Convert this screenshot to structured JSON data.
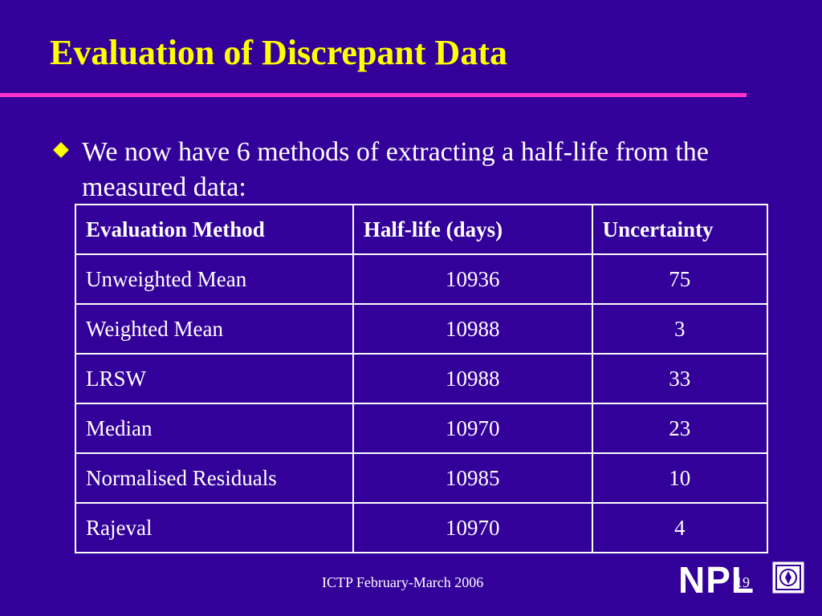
{
  "slide": {
    "title": "Evaluation of Discrepant Data",
    "bullet": "We now have 6 methods of extracting a half-life from the measured data:"
  },
  "table": {
    "headers": [
      "Evaluation Method",
      "Half-life (days)",
      "Uncertainty"
    ],
    "rows": [
      [
        "Unweighted Mean",
        "10936",
        "75"
      ],
      [
        "Weighted Mean",
        "10988",
        "3"
      ],
      [
        "LRSW",
        "10988",
        "33"
      ],
      [
        "Median",
        "10970",
        "23"
      ],
      [
        "Normalised Residuals",
        "10985",
        "10"
      ],
      [
        "Rajeval",
        "10970",
        "4"
      ]
    ]
  },
  "footer": {
    "text": "ICTP February-March 2006",
    "page_number": "19",
    "logo_text": "NPL",
    "logo_icon": "crest-icon"
  },
  "colors": {
    "background": "#330099",
    "title": "#ffff00",
    "rule": "#ff33cc",
    "text": "#ffffff"
  }
}
